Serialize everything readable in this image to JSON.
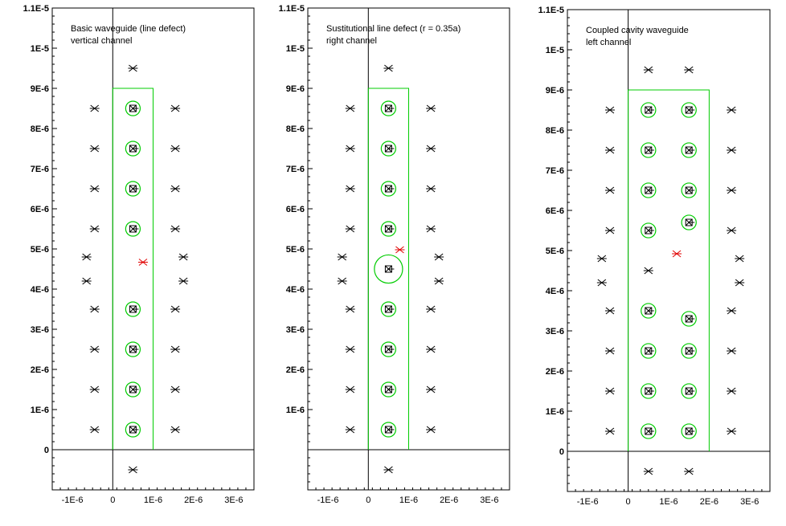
{
  "colors": {
    "axis": "#000000",
    "boundary": "#00cc00",
    "circle": "#00cc00",
    "marker": "#000000",
    "source": "#e00000",
    "background": "#ffffff"
  },
  "panels": [
    {
      "title": [
        "Basic waveguide (line defect)",
        "vertical channel"
      ],
      "xlim": [
        -1.5e-06,
        3.5e-06
      ],
      "ylim": [
        -1e-06,
        1.1e-05
      ],
      "yticks": [
        {
          "v": 0,
          "label": "0"
        },
        {
          "v": 1e-06,
          "label": "1E-6"
        },
        {
          "v": 2e-06,
          "label": "2E-6"
        },
        {
          "v": 3e-06,
          "label": "3E-6"
        },
        {
          "v": 4e-06,
          "label": "4E-6"
        },
        {
          "v": 5e-06,
          "label": "5E-6"
        },
        {
          "v": 6e-06,
          "label": "6E-6"
        },
        {
          "v": 7e-06,
          "label": "7E-6"
        },
        {
          "v": 8e-06,
          "label": "8E-6"
        },
        {
          "v": 9e-06,
          "label": "9E-6"
        },
        {
          "v": 1e-05,
          "label": "1E-5"
        },
        {
          "v": 1.1e-05,
          "label": "1.1E-5"
        }
      ],
      "xticks": [
        {
          "v": -1e-06,
          "label": "-1E-6"
        },
        {
          "v": 0,
          "label": "0"
        },
        {
          "v": 1e-06,
          "label": "1E-6"
        },
        {
          "v": 2e-06,
          "label": "2E-6"
        },
        {
          "v": 3e-06,
          "label": "3E-6"
        }
      ],
      "boundary": [
        [
          0,
          0
        ],
        [
          0,
          9e-06
        ],
        [
          1e-06,
          9e-06
        ],
        [
          1e-06,
          0
        ]
      ],
      "circles": [
        {
          "x": 5e-07,
          "y": 5e-07,
          "r": 1.8e-07
        },
        {
          "x": 5e-07,
          "y": 1.5e-06,
          "r": 1.8e-07
        },
        {
          "x": 5e-07,
          "y": 2.5e-06,
          "r": 1.8e-07
        },
        {
          "x": 5e-07,
          "y": 3.5e-06,
          "r": 1.8e-07
        },
        {
          "x": 5e-07,
          "y": 5.5e-06,
          "r": 1.8e-07
        },
        {
          "x": 5e-07,
          "y": 6.5e-06,
          "r": 1.8e-07
        },
        {
          "x": 5e-07,
          "y": 7.5e-06,
          "r": 1.8e-07
        },
        {
          "x": 5e-07,
          "y": 8.5e-06,
          "r": 1.8e-07
        }
      ],
      "markers": [
        [
          5e-07,
          9.5e-06
        ],
        [
          5e-07,
          -5e-07
        ],
        [
          -4.5e-07,
          8.5e-06
        ],
        [
          -4.5e-07,
          7.5e-06
        ],
        [
          -4.5e-07,
          6.5e-06
        ],
        [
          -4.5e-07,
          5.5e-06
        ],
        [
          -6.5e-07,
          4.8e-06
        ],
        [
          -6.5e-07,
          4.2e-06
        ],
        [
          -4.5e-07,
          3.5e-06
        ],
        [
          -4.5e-07,
          2.5e-06
        ],
        [
          -4.5e-07,
          1.5e-06
        ],
        [
          -4.5e-07,
          5e-07
        ],
        [
          1.55e-06,
          8.5e-06
        ],
        [
          1.55e-06,
          7.5e-06
        ],
        [
          1.55e-06,
          6.5e-06
        ],
        [
          1.55e-06,
          5.5e-06
        ],
        [
          1.75e-06,
          4.8e-06
        ],
        [
          1.75e-06,
          4.2e-06
        ],
        [
          1.55e-06,
          3.5e-06
        ],
        [
          1.55e-06,
          2.5e-06
        ],
        [
          1.55e-06,
          1.5e-06
        ],
        [
          1.55e-06,
          5e-07
        ]
      ],
      "sources": [
        [
          7.5e-07,
          4.67e-06
        ]
      ]
    },
    {
      "title": [
        "Sustitutional line defect (r = 0.35a)",
        "right channel"
      ],
      "xlim": [
        -1.5e-06,
        3.5e-06
      ],
      "ylim": [
        -1e-06,
        1.1e-05
      ],
      "yticks": [
        {
          "v": 1e-06,
          "label": "1E-6"
        },
        {
          "v": 2e-06,
          "label": "2E-6"
        },
        {
          "v": 3e-06,
          "label": "3E-6"
        },
        {
          "v": 4e-06,
          "label": "4E-6"
        },
        {
          "v": 5e-06,
          "label": "5E-6"
        },
        {
          "v": 6e-06,
          "label": "6E-6"
        },
        {
          "v": 7e-06,
          "label": "7E-6"
        },
        {
          "v": 8e-06,
          "label": "8E-6"
        },
        {
          "v": 9e-06,
          "label": "9E-6"
        },
        {
          "v": 1e-05,
          "label": "1E-5"
        },
        {
          "v": 1.1e-05,
          "label": "1.1E-5"
        }
      ],
      "xticks": [
        {
          "v": -1e-06,
          "label": "-1E-6"
        },
        {
          "v": 0,
          "label": "0"
        },
        {
          "v": 1e-06,
          "label": "1E-6"
        },
        {
          "v": 2e-06,
          "label": "2E-6"
        },
        {
          "v": 3e-06,
          "label": "3E-6"
        }
      ],
      "boundary": [
        [
          0,
          0
        ],
        [
          0,
          9e-06
        ],
        [
          1e-06,
          9e-06
        ],
        [
          1e-06,
          0
        ]
      ],
      "circles": [
        {
          "x": 5e-07,
          "y": 5e-07,
          "r": 1.8e-07
        },
        {
          "x": 5e-07,
          "y": 1.5e-06,
          "r": 1.8e-07
        },
        {
          "x": 5e-07,
          "y": 2.5e-06,
          "r": 1.8e-07
        },
        {
          "x": 5e-07,
          "y": 3.5e-06,
          "r": 1.8e-07
        },
        {
          "x": 5e-07,
          "y": 4.5e-06,
          "r": 3.5e-07
        },
        {
          "x": 5e-07,
          "y": 5.5e-06,
          "r": 1.8e-07
        },
        {
          "x": 5e-07,
          "y": 6.5e-06,
          "r": 1.8e-07
        },
        {
          "x": 5e-07,
          "y": 7.5e-06,
          "r": 1.8e-07
        },
        {
          "x": 5e-07,
          "y": 8.5e-06,
          "r": 1.8e-07
        }
      ],
      "markers": [
        [
          5e-07,
          9.5e-06
        ],
        [
          5e-07,
          -5e-07
        ],
        [
          -4.5e-07,
          8.5e-06
        ],
        [
          -4.5e-07,
          7.5e-06
        ],
        [
          -4.5e-07,
          6.5e-06
        ],
        [
          -4.5e-07,
          5.5e-06
        ],
        [
          -6.5e-07,
          4.8e-06
        ],
        [
          -6.5e-07,
          4.2e-06
        ],
        [
          -4.5e-07,
          3.5e-06
        ],
        [
          -4.5e-07,
          2.5e-06
        ],
        [
          -4.5e-07,
          1.5e-06
        ],
        [
          -4.5e-07,
          5e-07
        ],
        [
          1.55e-06,
          8.5e-06
        ],
        [
          1.55e-06,
          7.5e-06
        ],
        [
          1.55e-06,
          6.5e-06
        ],
        [
          1.55e-06,
          5.5e-06
        ],
        [
          1.75e-06,
          4.8e-06
        ],
        [
          1.75e-06,
          4.2e-06
        ],
        [
          1.55e-06,
          3.5e-06
        ],
        [
          1.55e-06,
          2.5e-06
        ],
        [
          1.55e-06,
          1.5e-06
        ],
        [
          1.55e-06,
          5e-07
        ]
      ],
      "sources": [
        [
          7.8e-07,
          4.98e-06
        ]
      ]
    },
    {
      "title": [
        "Coupled cavity waveguide",
        "left channel"
      ],
      "xlim": [
        -1.5e-06,
        3.5e-06
      ],
      "ylim": [
        -1e-06,
        1.1e-05
      ],
      "yticks": [
        {
          "v": 0,
          "label": "0"
        },
        {
          "v": 1e-06,
          "label": "1E-6"
        },
        {
          "v": 2e-06,
          "label": "2E-6"
        },
        {
          "v": 3e-06,
          "label": "3E-6"
        },
        {
          "v": 4e-06,
          "label": "4E-6"
        },
        {
          "v": 5e-06,
          "label": "5E-6"
        },
        {
          "v": 6e-06,
          "label": "6E-6"
        },
        {
          "v": 7e-06,
          "label": "7E-6"
        },
        {
          "v": 8e-06,
          "label": "8E-6"
        },
        {
          "v": 9e-06,
          "label": "9E-6"
        },
        {
          "v": 1e-05,
          "label": "1E-5"
        },
        {
          "v": 1.1e-05,
          "label": "1.1E-5"
        }
      ],
      "xticks": [
        {
          "v": -1e-06,
          "label": "-1E-6"
        },
        {
          "v": 0,
          "label": "0"
        },
        {
          "v": 1e-06,
          "label": "1E-6"
        },
        {
          "v": 2e-06,
          "label": "2E-6"
        },
        {
          "v": 3e-06,
          "label": "3E-6"
        }
      ],
      "boundary": [
        [
          0,
          0
        ],
        [
          0,
          9e-06
        ],
        [
          2e-06,
          9e-06
        ],
        [
          2e-06,
          0
        ]
      ],
      "circles": [
        {
          "x": 5e-07,
          "y": 5e-07,
          "r": 1.8e-07
        },
        {
          "x": 5e-07,
          "y": 1.5e-06,
          "r": 1.8e-07
        },
        {
          "x": 5e-07,
          "y": 2.5e-06,
          "r": 1.8e-07
        },
        {
          "x": 5e-07,
          "y": 3.5e-06,
          "r": 1.8e-07
        },
        {
          "x": 5e-07,
          "y": 5.5e-06,
          "r": 1.8e-07
        },
        {
          "x": 5e-07,
          "y": 6.5e-06,
          "r": 1.8e-07
        },
        {
          "x": 5e-07,
          "y": 7.5e-06,
          "r": 1.8e-07
        },
        {
          "x": 5e-07,
          "y": 8.5e-06,
          "r": 1.8e-07
        },
        {
          "x": 1.5e-06,
          "y": 5e-07,
          "r": 1.8e-07
        },
        {
          "x": 1.5e-06,
          "y": 1.5e-06,
          "r": 1.8e-07
        },
        {
          "x": 1.5e-06,
          "y": 2.5e-06,
          "r": 1.8e-07
        },
        {
          "x": 1.5e-06,
          "y": 3.3e-06,
          "r": 1.8e-07
        },
        {
          "x": 1.5e-06,
          "y": 5.7e-06,
          "r": 1.8e-07
        },
        {
          "x": 1.5e-06,
          "y": 6.5e-06,
          "r": 1.8e-07
        },
        {
          "x": 1.5e-06,
          "y": 7.5e-06,
          "r": 1.8e-07
        },
        {
          "x": 1.5e-06,
          "y": 8.5e-06,
          "r": 1.8e-07
        }
      ],
      "markers": [
        [
          5e-07,
          9.5e-06
        ],
        [
          1.5e-06,
          9.5e-06
        ],
        [
          5e-07,
          -5e-07
        ],
        [
          1.5e-06,
          -5e-07
        ],
        [
          5e-07,
          4.5e-06
        ],
        [
          -4.5e-07,
          8.5e-06
        ],
        [
          -4.5e-07,
          7.5e-06
        ],
        [
          -4.5e-07,
          6.5e-06
        ],
        [
          -4.5e-07,
          5.5e-06
        ],
        [
          -6.5e-07,
          4.8e-06
        ],
        [
          -6.5e-07,
          4.2e-06
        ],
        [
          -4.5e-07,
          3.5e-06
        ],
        [
          -4.5e-07,
          2.5e-06
        ],
        [
          -4.5e-07,
          1.5e-06
        ],
        [
          -4.5e-07,
          5e-07
        ],
        [
          2.55e-06,
          8.5e-06
        ],
        [
          2.55e-06,
          7.5e-06
        ],
        [
          2.55e-06,
          6.5e-06
        ],
        [
          2.55e-06,
          5.5e-06
        ],
        [
          2.75e-06,
          4.8e-06
        ],
        [
          2.75e-06,
          4.2e-06
        ],
        [
          2.55e-06,
          3.5e-06
        ],
        [
          2.55e-06,
          2.5e-06
        ],
        [
          2.55e-06,
          1.5e-06
        ],
        [
          2.55e-06,
          5e-07
        ]
      ],
      "sources": [
        [
          1.2e-06,
          4.92e-06
        ]
      ]
    }
  ]
}
